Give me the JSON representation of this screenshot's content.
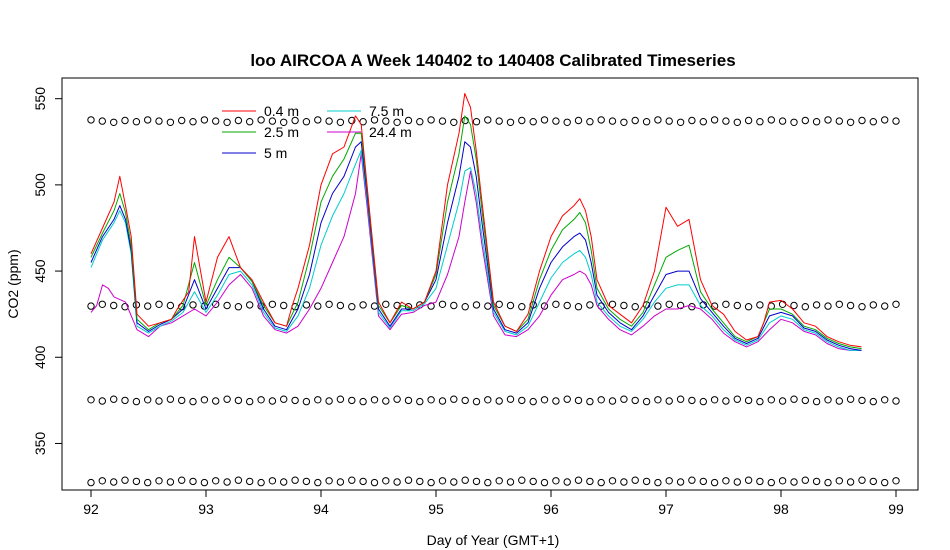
{
  "chart_data": {
    "type": "line",
    "title": "loo AIRCOA A  Week 140402 to 140408  Calibrated Timeseries",
    "xlabel": "Day of Year (GMT+1)",
    "ylabel": "CO2 (ppm)",
    "xlim": [
      92,
      99
    ],
    "ylim": [
      323,
      562
    ],
    "x_ticks": [
      92,
      93,
      94,
      95,
      96,
      97,
      98,
      99
    ],
    "y_ticks": [
      350,
      400,
      450,
      500,
      550
    ],
    "legend_position": "top-left",
    "grid": false,
    "series": [
      {
        "name": "0.4 m",
        "color": "#ff0000",
        "x": [
          92.0,
          92.1,
          92.2,
          92.25,
          92.3,
          92.35,
          92.4,
          92.5,
          92.6,
          92.7,
          92.75,
          92.85,
          92.9,
          93.0,
          93.1,
          93.2,
          93.3,
          93.4,
          93.5,
          93.6,
          93.7,
          93.75,
          93.8,
          93.9,
          94.0,
          94.1,
          94.2,
          94.3,
          94.35,
          94.4,
          94.5,
          94.6,
          94.7,
          94.8,
          94.9,
          95.0,
          95.1,
          95.2,
          95.25,
          95.3,
          95.35,
          95.4,
          95.5,
          95.6,
          95.7,
          95.8,
          95.9,
          96.0,
          96.1,
          96.2,
          96.25,
          96.3,
          96.35,
          96.4,
          96.5,
          96.6,
          96.7,
          96.8,
          96.9,
          97.0,
          97.1,
          97.2,
          97.3,
          97.4,
          97.5,
          97.6,
          97.7,
          97.8,
          97.85,
          97.9,
          98.0,
          98.1,
          98.2,
          98.3,
          98.4,
          98.5,
          98.6,
          98.7
        ],
        "values": [
          460,
          475,
          490,
          505,
          488,
          470,
          425,
          418,
          420,
          422,
          428,
          438,
          470,
          432,
          458,
          470,
          452,
          445,
          432,
          420,
          418,
          430,
          440,
          465,
          500,
          518,
          522,
          540,
          535,
          500,
          432,
          420,
          432,
          428,
          432,
          450,
          500,
          530,
          553,
          545,
          520,
          490,
          432,
          418,
          415,
          425,
          450,
          470,
          482,
          488,
          492,
          485,
          470,
          445,
          430,
          425,
          420,
          430,
          450,
          487,
          476,
          480,
          445,
          430,
          425,
          415,
          410,
          412,
          420,
          432,
          433,
          428,
          420,
          418,
          412,
          409,
          407,
          406
        ]
      },
      {
        "name": "2.5 m",
        "color": "#00aa00",
        "x": [
          92.0,
          92.1,
          92.2,
          92.25,
          92.3,
          92.35,
          92.4,
          92.5,
          92.6,
          92.7,
          92.8,
          92.9,
          93.0,
          93.1,
          93.2,
          93.3,
          93.4,
          93.5,
          93.6,
          93.7,
          93.8,
          93.9,
          94.0,
          94.1,
          94.2,
          94.3,
          94.35,
          94.4,
          94.5,
          94.6,
          94.7,
          94.8,
          94.9,
          95.0,
          95.1,
          95.2,
          95.25,
          95.3,
          95.35,
          95.4,
          95.5,
          95.6,
          95.7,
          95.8,
          95.9,
          96.0,
          96.1,
          96.2,
          96.25,
          96.3,
          96.35,
          96.4,
          96.5,
          96.6,
          96.7,
          96.8,
          96.9,
          97.0,
          97.1,
          97.2,
          97.3,
          97.4,
          97.5,
          97.6,
          97.7,
          97.8,
          97.9,
          98.0,
          98.1,
          98.2,
          98.3,
          98.4,
          98.5,
          98.6,
          98.7
        ],
        "values": [
          458,
          472,
          485,
          495,
          484,
          465,
          422,
          416,
          420,
          422,
          430,
          455,
          430,
          445,
          458,
          452,
          444,
          430,
          420,
          418,
          432,
          458,
          490,
          505,
          515,
          530,
          530,
          498,
          430,
          420,
          430,
          428,
          432,
          448,
          490,
          518,
          540,
          535,
          515,
          485,
          430,
          418,
          415,
          422,
          445,
          462,
          474,
          480,
          484,
          478,
          462,
          440,
          428,
          422,
          418,
          426,
          442,
          458,
          462,
          465,
          438,
          428,
          420,
          412,
          409,
          412,
          428,
          428,
          425,
          418,
          416,
          411,
          408,
          406,
          405
        ]
      },
      {
        "name": "5 m",
        "color": "#0000cc",
        "x": [
          92.0,
          92.1,
          92.2,
          92.25,
          92.3,
          92.35,
          92.4,
          92.5,
          92.6,
          92.7,
          92.8,
          92.9,
          93.0,
          93.1,
          93.2,
          93.3,
          93.4,
          93.5,
          93.6,
          93.7,
          93.8,
          93.9,
          94.0,
          94.1,
          94.2,
          94.3,
          94.35,
          94.4,
          94.5,
          94.6,
          94.7,
          94.8,
          94.9,
          95.0,
          95.1,
          95.2,
          95.25,
          95.3,
          95.35,
          95.4,
          95.5,
          95.6,
          95.7,
          95.8,
          95.9,
          96.0,
          96.1,
          96.2,
          96.25,
          96.3,
          96.35,
          96.4,
          96.5,
          96.6,
          96.7,
          96.8,
          96.9,
          97.0,
          97.1,
          97.2,
          97.3,
          97.4,
          97.5,
          97.6,
          97.7,
          97.8,
          97.9,
          98.0,
          98.1,
          98.2,
          98.3,
          98.4,
          98.5,
          98.6,
          98.7
        ],
        "values": [
          455,
          470,
          480,
          488,
          480,
          462,
          420,
          415,
          419,
          422,
          428,
          445,
          428,
          440,
          452,
          452,
          444,
          428,
          418,
          416,
          428,
          448,
          478,
          495,
          505,
          522,
          525,
          495,
          428,
          418,
          428,
          428,
          432,
          445,
          478,
          505,
          525,
          522,
          505,
          478,
          428,
          416,
          414,
          420,
          440,
          455,
          464,
          470,
          472,
          468,
          455,
          436,
          426,
          420,
          416,
          424,
          436,
          448,
          450,
          450,
          434,
          426,
          418,
          411,
          408,
          411,
          424,
          426,
          424,
          417,
          415,
          410,
          407,
          405,
          404
        ]
      },
      {
        "name": "7.5 m",
        "color": "#00cccc",
        "x": [
          92.0,
          92.1,
          92.2,
          92.25,
          92.3,
          92.35,
          92.4,
          92.5,
          92.6,
          92.7,
          92.8,
          92.9,
          93.0,
          93.1,
          93.2,
          93.3,
          93.4,
          93.5,
          93.6,
          93.7,
          93.8,
          93.9,
          94.0,
          94.1,
          94.2,
          94.3,
          94.35,
          94.4,
          94.5,
          94.6,
          94.7,
          94.8,
          94.9,
          95.0,
          95.1,
          95.2,
          95.25,
          95.3,
          95.35,
          95.4,
          95.5,
          95.6,
          95.7,
          95.8,
          95.9,
          96.0,
          96.1,
          96.2,
          96.25,
          96.3,
          96.35,
          96.4,
          96.5,
          96.6,
          96.7,
          96.8,
          96.9,
          97.0,
          97.1,
          97.2,
          97.3,
          97.4,
          97.5,
          97.6,
          97.7,
          97.8,
          97.9,
          98.0,
          98.1,
          98.2,
          98.3,
          98.4,
          98.5,
          98.6,
          98.7
        ],
        "values": [
          452,
          468,
          478,
          485,
          478,
          460,
          418,
          414,
          418,
          421,
          426,
          438,
          426,
          436,
          448,
          450,
          442,
          426,
          417,
          415,
          424,
          440,
          465,
          482,
          495,
          512,
          520,
          492,
          426,
          417,
          427,
          427,
          431,
          440,
          465,
          490,
          508,
          510,
          495,
          470,
          426,
          415,
          413,
          418,
          432,
          446,
          455,
          460,
          462,
          458,
          448,
          432,
          424,
          418,
          415,
          422,
          432,
          440,
          442,
          442,
          430,
          424,
          416,
          410,
          407,
          410,
          420,
          424,
          422,
          416,
          414,
          409,
          406,
          404,
          404
        ]
      },
      {
        "name": "24.4 m",
        "color": "#cc00cc",
        "x": [
          92.0,
          92.05,
          92.1,
          92.15,
          92.2,
          92.3,
          92.4,
          92.5,
          92.6,
          92.7,
          92.8,
          92.9,
          93.0,
          93.1,
          93.2,
          93.3,
          93.4,
          93.5,
          93.6,
          93.7,
          93.8,
          93.9,
          94.0,
          94.1,
          94.2,
          94.3,
          94.35,
          94.4,
          94.5,
          94.6,
          94.7,
          94.8,
          94.9,
          95.0,
          95.1,
          95.2,
          95.25,
          95.3,
          95.35,
          95.4,
          95.5,
          95.6,
          95.7,
          95.8,
          95.9,
          96.0,
          96.1,
          96.2,
          96.25,
          96.3,
          96.35,
          96.4,
          96.5,
          96.6,
          96.7,
          96.8,
          96.9,
          97.0,
          97.1,
          97.2,
          97.3,
          97.4,
          97.5,
          97.6,
          97.7,
          97.8,
          97.9,
          98.0,
          98.1,
          98.2,
          98.3,
          98.4,
          98.5,
          98.6,
          98.7
        ],
        "values": [
          426,
          430,
          442,
          440,
          435,
          432,
          416,
          412,
          418,
          420,
          424,
          428,
          424,
          432,
          442,
          448,
          440,
          424,
          416,
          414,
          418,
          428,
          440,
          455,
          470,
          495,
          518,
          488,
          424,
          416,
          425,
          426,
          430,
          432,
          448,
          470,
          490,
          508,
          490,
          465,
          424,
          413,
          412,
          416,
          424,
          436,
          445,
          448,
          450,
          448,
          442,
          430,
          422,
          416,
          413,
          418,
          424,
          428,
          428,
          430,
          428,
          422,
          414,
          409,
          406,
          409,
          416,
          422,
          420,
          415,
          413,
          408,
          405,
          404,
          404
        ]
      }
    ],
    "reference_markers": {
      "symbol": "open-circle",
      "color": "#000000",
      "x_start": 92.0,
      "x_end": 99.0,
      "count": 72,
      "levels": [
        537,
        430,
        375,
        328
      ]
    }
  }
}
